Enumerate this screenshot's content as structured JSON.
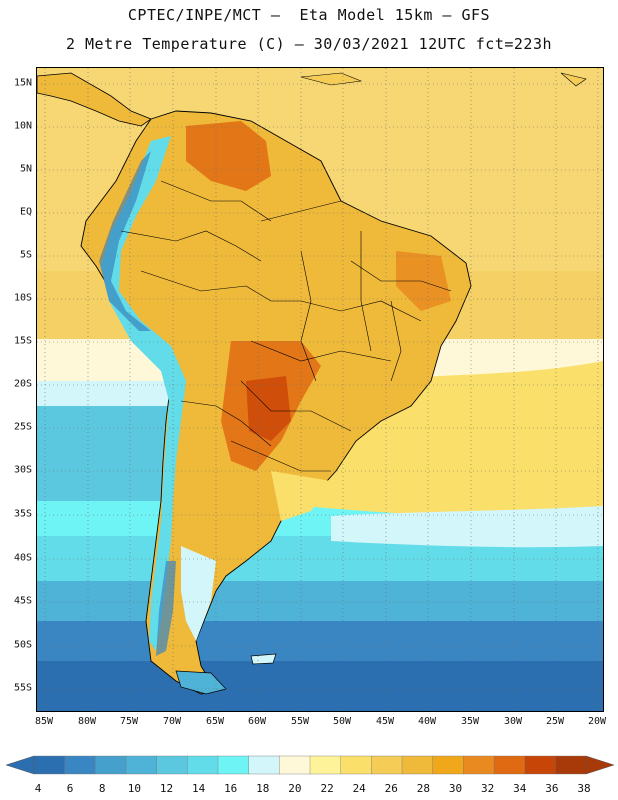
{
  "header": {
    "line1": "CPTEC/INPE/MCT –  Eta Model 15km – GFS",
    "line2": "2 Metre Temperature (C) – 30/03/2021 12UTC fct=223h"
  },
  "map": {
    "lat_labels": [
      "15N",
      "10N",
      "5N",
      "EQ",
      "5S",
      "10S",
      "15S",
      "20S",
      "25S",
      "30S",
      "35S",
      "40S",
      "45S",
      "50S",
      "55S"
    ],
    "lon_labels": [
      "85W",
      "80W",
      "75W",
      "70W",
      "65W",
      "60W",
      "55W",
      "50W",
      "45W",
      "40W",
      "35W",
      "30W",
      "25W",
      "20W"
    ]
  },
  "colorbar": {
    "labels": [
      "4",
      "6",
      "8",
      "10",
      "12",
      "14",
      "16",
      "18",
      "20",
      "22",
      "24",
      "26",
      "28",
      "30",
      "32",
      "34",
      "36",
      "38"
    ],
    "colors": [
      "#2c6fb0",
      "#3a86c2",
      "#45a0cc",
      "#4fb3d8",
      "#5cc8e0",
      "#63dcea",
      "#6ff4f6",
      "#d2f6fa",
      "#fff8d8",
      "#fff39a",
      "#fae06a",
      "#f5cc55",
      "#efb93a",
      "#f0a81a",
      "#e98a20",
      "#e06a12",
      "#c84508",
      "#a83a0a"
    ]
  }
}
